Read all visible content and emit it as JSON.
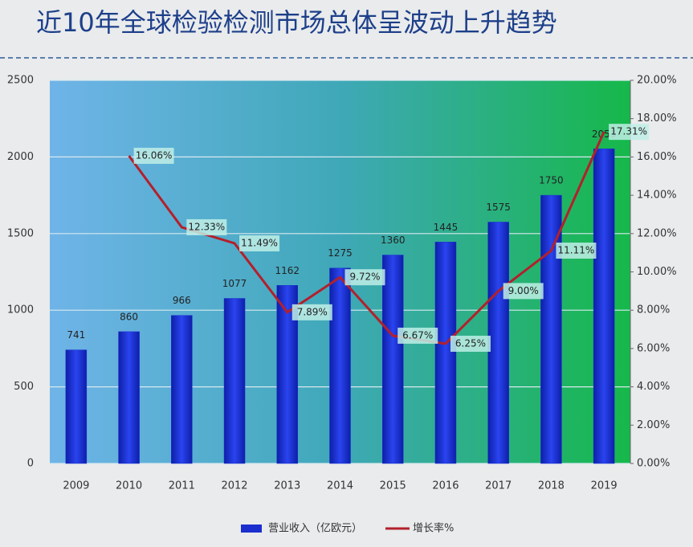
{
  "chart_data": {
    "type": "combo",
    "title": "近10年全球检验检测市场总体呈波动上升趋势",
    "categories": [
      "2009",
      "2010",
      "2011",
      "2012",
      "2013",
      "2014",
      "2015",
      "2016",
      "2017",
      "2018",
      "2019"
    ],
    "series": [
      {
        "name": "营业收入（亿欧元）",
        "type": "bar",
        "color": "#1b2fcf",
        "values": [
          741,
          860,
          966,
          1077,
          1162,
          1275,
          1360,
          1445,
          1575,
          1750,
          2053
        ]
      },
      {
        "name": "增长率%",
        "type": "line",
        "color": "#b3202c",
        "axis": "y2",
        "values": [
          null,
          16.06,
          12.33,
          11.49,
          7.89,
          9.72,
          6.67,
          6.25,
          9.0,
          11.11,
          17.31
        ],
        "value_labels": [
          null,
          "16.06%",
          "12.33%",
          "11.49%",
          "7.89%",
          "9.72%",
          "6.67%",
          "6.25%",
          "9.00%",
          "11.11%",
          "17.31%"
        ]
      }
    ],
    "ylim": [
      0,
      2500
    ],
    "yticks": [
      0,
      500,
      1000,
      1500,
      2000,
      2500
    ],
    "y2lim": [
      0,
      20
    ],
    "y2ticks": [
      {
        "value": 0,
        "label": "0.00%"
      },
      {
        "value": 2,
        "label": "2.00%"
      },
      {
        "value": 4,
        "label": "4.00%"
      },
      {
        "value": 6,
        "label": "6.00%"
      },
      {
        "value": 8,
        "label": "8.00%"
      },
      {
        "value": 10,
        "label": "10.00%"
      },
      {
        "value": 12,
        "label": "12.00%"
      },
      {
        "value": 14,
        "label": "14.00%"
      },
      {
        "value": 16,
        "label": "16.00%"
      },
      {
        "value": 18,
        "label": "18.00%"
      },
      {
        "value": 20,
        "label": "20.00%"
      }
    ],
    "grid": true,
    "legend": "bottom"
  }
}
